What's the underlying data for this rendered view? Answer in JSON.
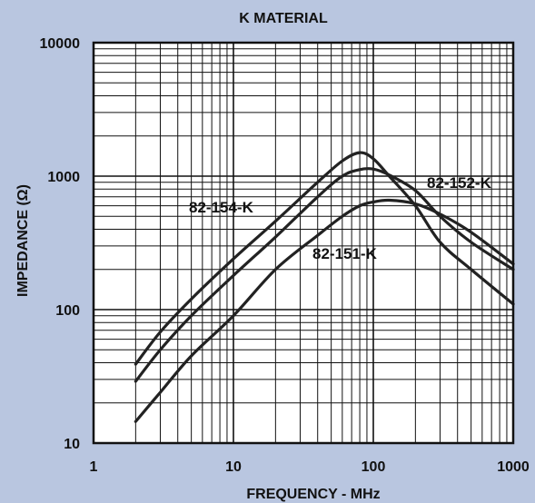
{
  "chart_data": {
    "type": "line",
    "title": "K MATERIAL",
    "xlabel": "FREQUENCY - MHz",
    "ylabel": "IMPEDANCE (Ω)",
    "x_scale": "log",
    "y_scale": "log",
    "xlim": [
      1,
      1000
    ],
    "ylim": [
      10,
      10000
    ],
    "x_ticks": [
      "1",
      "10",
      "100",
      "1000"
    ],
    "y_ticks": [
      "10",
      "100",
      "1000",
      "10000"
    ],
    "grid": true,
    "colors": {
      "background": "#b9c6e0",
      "plot": "#ffffff",
      "line": "#222222"
    },
    "series": [
      {
        "name": "82-154-K",
        "x": [
          2,
          3,
          5,
          10,
          20,
          40,
          60,
          80,
          100,
          130,
          200,
          300,
          500,
          1000
        ],
        "y": [
          39,
          68,
          120,
          240,
          460,
          900,
          1300,
          1500,
          1350,
          1000,
          600,
          320,
          200,
          110
        ]
      },
      {
        "name": "82-152-K",
        "x": [
          2,
          3,
          5,
          10,
          20,
          40,
          60,
          80,
          100,
          130,
          200,
          300,
          500,
          1000
        ],
        "y": [
          29,
          50,
          90,
          180,
          350,
          700,
          1000,
          1120,
          1130,
          1020,
          780,
          500,
          320,
          200
        ]
      },
      {
        "name": "82-151-K",
        "x": [
          2,
          3,
          5,
          10,
          20,
          40,
          60,
          80,
          100,
          130,
          200,
          300,
          500,
          1000
        ],
        "y": [
          14.5,
          24,
          45,
          90,
          200,
          360,
          500,
          600,
          640,
          660,
          620,
          520,
          380,
          220
        ]
      }
    ]
  }
}
